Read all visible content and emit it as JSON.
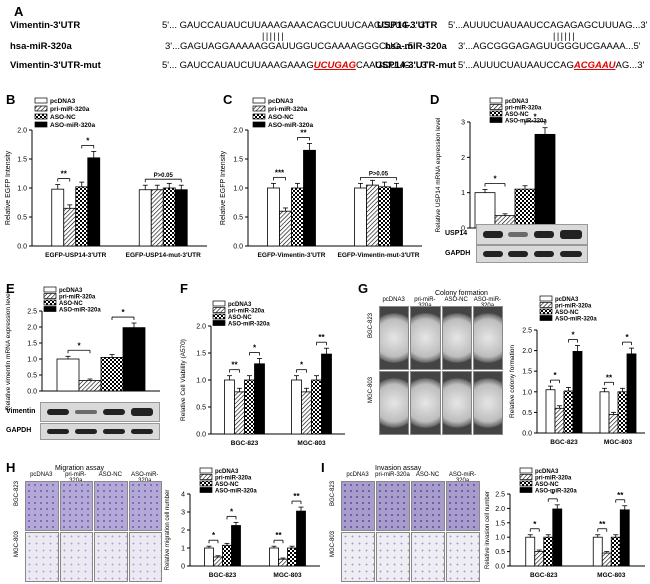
{
  "panel_labels": {
    "A": "A",
    "B": "B",
    "C": "C",
    "D": "D",
    "E": "E",
    "F": "F",
    "G": "G",
    "H": "H",
    "I": "I"
  },
  "sequences": {
    "left": {
      "row1": {
        "name": "Vimentin-3'UTR",
        "seq": "5'... GAUCCAUAUCUUAAAGAAACAGCUUUCAAGCUUG... 3'"
      },
      "row2": {
        "name": "hsa-miR-320a",
        "seq": "3'...GAGUAGGAAAAAGGAUUGGUCGAAAAGGGCUG...5'"
      },
      "row3": {
        "name": "Vimentin-3'UTR-mut",
        "seq_pre": "5'... GAUCCAUAUCUUAAAGAAAG",
        "seq_mut": "UCUGAG",
        "seq_post": "CAAGCUUG... 3'"
      }
    },
    "right": {
      "row1": {
        "name": "USP14-3'UTR",
        "seq": "5'...AUUUCUAUAAUCCAGAGAGCUUUAG...3'"
      },
      "row2": {
        "name": "hsa-miR-320a",
        "seq": "3'...AGCGGGAGAGUUGGGUCGAAAA...5'"
      },
      "row3": {
        "name": "USP14-3'UTR-mut",
        "seq_pre": "5'...AUUUCUAUAAUCCAG",
        "seq_mut": "ACGAAU",
        "seq_post": "AG...3'"
      }
    },
    "pairing": "| | | | | |"
  },
  "legend_abcd": [
    "pcDNA3",
    "pri-miR-320a",
    "ASO-NC",
    "ASO-miR-320a"
  ],
  "legend_efghi": [
    "pcDNA3",
    "pri-miR-320a",
    "ASO-NC",
    "ASO-miR-320a"
  ],
  "colors": {
    "pcDNA3": "#ffffff",
    "pri": "#bbbbbb",
    "aso_nc": "#888888",
    "aso_miR": "#000000"
  },
  "blots": {
    "D": {
      "top": "USP14",
      "bottom": "GAPDH"
    },
    "E": {
      "top": "Vimentin",
      "bottom": "GAPDH"
    }
  },
  "photo_titles": {
    "G": {
      "title": "Colony formation",
      "cols": [
        "pcDNA3",
        "pri-miR-320a",
        "ASO-NC",
        "ASO-miR-320a"
      ],
      "rows": [
        "BGC-823",
        "MGC-803"
      ]
    },
    "H": {
      "title": "Migration assay",
      "cols": [
        "pcDNA3",
        "pri-miR-320a",
        "ASO-NC",
        "ASO-miR-320a"
      ],
      "rows": [
        "BGC-823",
        "MGC-803"
      ]
    },
    "I": {
      "title": "Invasion assay",
      "cols": [
        "pcDNA3",
        "pri-miR-320a",
        "ASO-NC",
        "ASO-miR-320a"
      ],
      "rows": [
        "BGC-823",
        "MGC-803"
      ]
    }
  },
  "chart_data": [
    {
      "id": "B",
      "type": "bar",
      "ylabel": "Relative EGFP Intensity",
      "ylim": [
        0,
        2.0
      ],
      "yticks": [
        "0.0",
        "0.5",
        "1.0",
        "1.5",
        "2.0"
      ],
      "categories": [
        "EGFP-USP14-3'UTR",
        "EGFP-USP14-mut-3'UTR"
      ],
      "series": [
        {
          "name": "pcDNA3",
          "values": [
            0.98,
            0.97
          ]
        },
        {
          "name": "pri-miR-320a",
          "values": [
            0.65,
            0.97
          ]
        },
        {
          "name": "ASO-NC",
          "values": [
            1.02,
            1.0
          ]
        },
        {
          "name": "ASO-miR-320a",
          "values": [
            1.52,
            0.97
          ]
        }
      ],
      "annotations": [
        "**",
        "*",
        "P>0.05"
      ]
    },
    {
      "id": "C",
      "type": "bar",
      "ylabel": "Relative EGFP Intensity",
      "ylim": [
        0,
        2.0
      ],
      "yticks": [
        "0.0",
        "0.5",
        "1.0",
        "1.5",
        "2.0"
      ],
      "categories": [
        "EGFP-Vimentin-3'UTR",
        "EGFP-Vimentin-mut-3'UTR"
      ],
      "series": [
        {
          "name": "pcDNA3",
          "values": [
            1.0,
            1.0
          ]
        },
        {
          "name": "pri-miR-320a",
          "values": [
            0.6,
            1.05
          ]
        },
        {
          "name": "ASO-NC",
          "values": [
            1.0,
            1.02
          ]
        },
        {
          "name": "ASO-miR-320a",
          "values": [
            1.65,
            1.0
          ]
        }
      ],
      "annotations": [
        "***",
        "**",
        "P>0.05"
      ]
    },
    {
      "id": "D",
      "type": "bar",
      "ylabel": "Relative USP14 mRNA expression level",
      "ylim": [
        0,
        3
      ],
      "yticks": [
        "0",
        "1",
        "2",
        "3"
      ],
      "categories": [
        ""
      ],
      "series": [
        {
          "name": "pcDNA3",
          "values": [
            1.0
          ]
        },
        {
          "name": "pri-miR-320a",
          "values": [
            0.35
          ]
        },
        {
          "name": "ASO-NC",
          "values": [
            1.1
          ]
        },
        {
          "name": "ASO-miR-320a",
          "values": [
            2.65
          ]
        }
      ],
      "annotations": [
        "*",
        "*"
      ]
    },
    {
      "id": "E",
      "type": "bar",
      "ylabel": "Relative vimentin mRNA expression level",
      "ylim": [
        0,
        2.5
      ],
      "yticks": [
        "0.0",
        "0.5",
        "1.0",
        "1.5",
        "2.0",
        "2.5"
      ],
      "categories": [
        ""
      ],
      "series": [
        {
          "name": "pcDNA3",
          "values": [
            1.0
          ]
        },
        {
          "name": "pri-miR-320a",
          "values": [
            0.33
          ]
        },
        {
          "name": "ASO-NC",
          "values": [
            1.05
          ]
        },
        {
          "name": "ASO-miR-320a",
          "values": [
            1.98
          ]
        }
      ],
      "annotations": [
        "*",
        "*"
      ]
    },
    {
      "id": "F",
      "type": "bar",
      "ylabel": "Relative Cell Viability (A570)",
      "ylim": [
        0,
        2.0
      ],
      "yticks": [
        "0.0",
        "0.5",
        "1.0",
        "1.5",
        "2.0"
      ],
      "categories": [
        "BGC-823",
        "MGC-803"
      ],
      "series": [
        {
          "name": "pcDNA3",
          "values": [
            1.0,
            1.0
          ]
        },
        {
          "name": "pri-miR-320a",
          "values": [
            0.78,
            0.78
          ]
        },
        {
          "name": "ASO-NC",
          "values": [
            1.0,
            1.0
          ]
        },
        {
          "name": "ASO-miR-320a",
          "values": [
            1.3,
            1.48
          ]
        }
      ],
      "annotations": [
        "**",
        "*",
        "*",
        "**"
      ]
    },
    {
      "id": "G",
      "type": "bar",
      "ylabel": "Relative colony formation",
      "ylim": [
        0,
        2.5
      ],
      "yticks": [
        "0.0",
        "0.5",
        "1.0",
        "1.5",
        "2.0",
        "2.5"
      ],
      "categories": [
        "BGC-823",
        "MGC-803"
      ],
      "series": [
        {
          "name": "pcDNA3",
          "values": [
            1.05,
            1.0
          ]
        },
        {
          "name": "pri-miR-320a",
          "values": [
            0.6,
            0.45
          ]
        },
        {
          "name": "ASO-NC",
          "values": [
            1.02,
            1.0
          ]
        },
        {
          "name": "ASO-miR-320a",
          "values": [
            1.98,
            1.92
          ]
        }
      ],
      "annotations": [
        "*",
        "*",
        "**",
        "*"
      ]
    },
    {
      "id": "H",
      "type": "bar",
      "ylabel": "Relative migration cell number",
      "ylim": [
        0,
        4
      ],
      "yticks": [
        "0",
        "1",
        "2",
        "3",
        "4"
      ],
      "categories": [
        "BGC-823",
        "MGC-803"
      ],
      "series": [
        {
          "name": "pcDNA3",
          "values": [
            1.0,
            1.0
          ]
        },
        {
          "name": "pri-miR-320a",
          "values": [
            0.5,
            0.38
          ]
        },
        {
          "name": "ASO-NC",
          "values": [
            1.15,
            1.0
          ]
        },
        {
          "name": "ASO-miR-320a",
          "values": [
            2.25,
            3.05
          ]
        }
      ],
      "annotations": [
        "*",
        "*",
        "**",
        "**"
      ]
    },
    {
      "id": "I",
      "type": "bar",
      "ylabel": "Relative invasion cell number",
      "ylim": [
        0,
        2.5
      ],
      "yticks": [
        "0.0",
        "0.5",
        "1.0",
        "1.5",
        "2.0",
        "2.5"
      ],
      "categories": [
        "BGC-823",
        "MGC-803"
      ],
      "series": [
        {
          "name": "pcDNA3",
          "values": [
            1.0,
            1.0
          ]
        },
        {
          "name": "pri-miR-320a",
          "values": [
            0.5,
            0.45
          ]
        },
        {
          "name": "ASO-NC",
          "values": [
            1.0,
            1.0
          ]
        },
        {
          "name": "ASO-miR-320a",
          "values": [
            1.98,
            1.95
          ]
        }
      ],
      "annotations": [
        "*",
        "*",
        "**",
        "**"
      ]
    }
  ]
}
